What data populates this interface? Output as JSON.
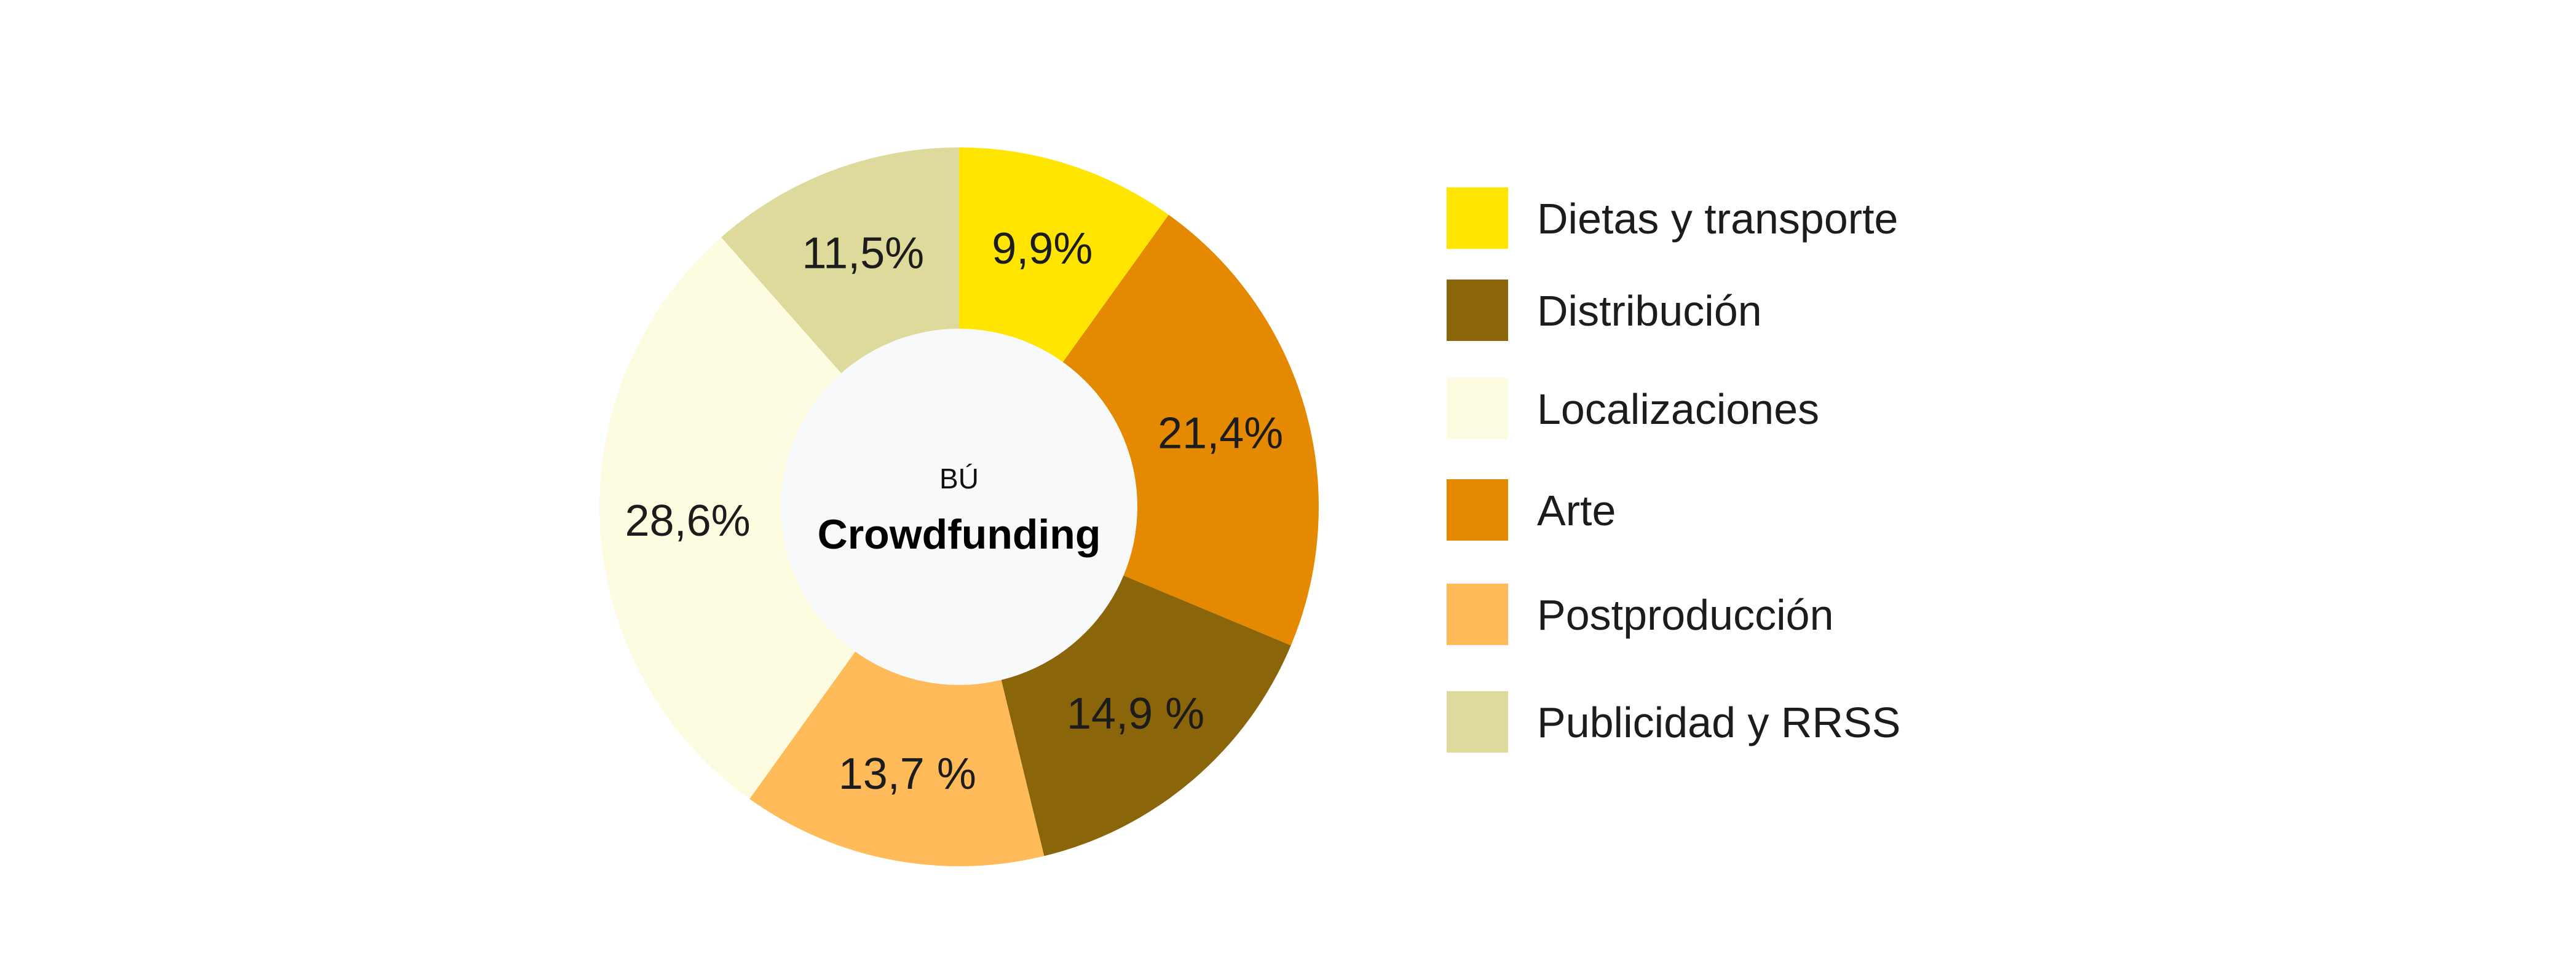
{
  "chart_data": {
    "type": "pie",
    "subtitle": "BÚ",
    "title": "Crowdfunding",
    "values": [
      9.9,
      21.4,
      14.9,
      13.7,
      28.6,
      11.5
    ],
    "series": [
      {
        "name": "Dietas y transporte",
        "value": 9.9,
        "label": "9,9%",
        "color": "#FFE500"
      },
      {
        "name": "Arte",
        "value": 21.4,
        "label": "21,4%",
        "color": "#E48900"
      },
      {
        "name": "Distribución",
        "value": 14.9,
        "label": "14,9 %",
        "color": "#8B650A"
      },
      {
        "name": "Postproducción",
        "value": 13.7,
        "label": "13,7 %",
        "color": "#FFBB5A"
      },
      {
        "name": "Localizaciones",
        "value": 28.6,
        "label": "28,6%",
        "color": "#FDFBE0"
      },
      {
        "name": "Publicidad y RRSS",
        "value": 11.5,
        "label": "11,5%",
        "color": "#DDDA9C"
      }
    ],
    "legend": [
      {
        "name": "Dietas y transporte",
        "color": "#FFE500"
      },
      {
        "name": "Distribución",
        "color": "#8B650A"
      },
      {
        "name": "Localizaciones",
        "color": "#FDFBE0"
      },
      {
        "name": "Arte",
        "color": "#E48900"
      },
      {
        "name": "Postproducción",
        "color": "#FFBB5A"
      },
      {
        "name": "Publicidad y RRSS",
        "color": "#DDDA9C"
      }
    ],
    "legend_position": "right",
    "center_color": "#F8F9FA"
  }
}
